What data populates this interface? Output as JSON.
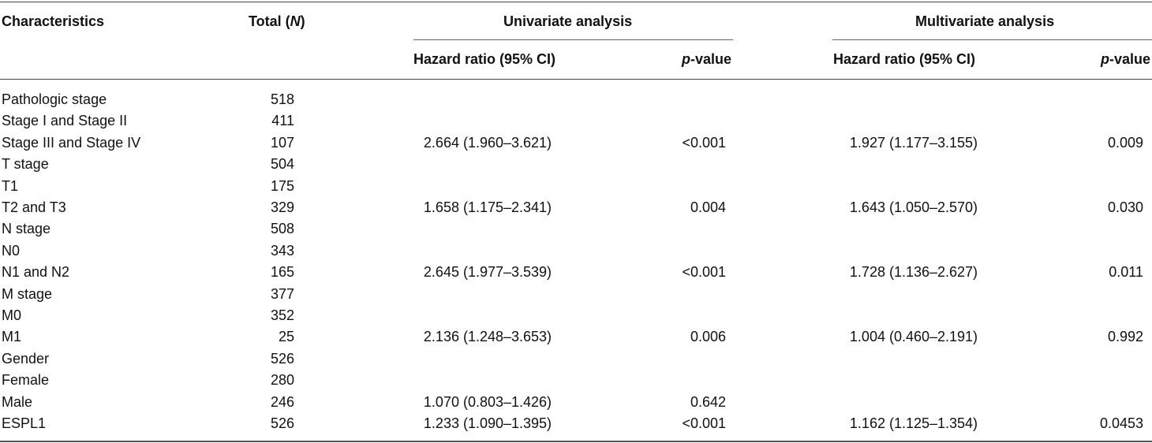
{
  "headers": {
    "characteristics": "Characteristics",
    "total_prefix": "Total (",
    "total_n": "N",
    "total_suffix": ")",
    "univariate": "Univariate analysis",
    "multivariate": "Multivariate analysis",
    "hazard_ratio": "Hazard ratio (95% CI)",
    "p_italic": "p",
    "p_rest": "-value"
  },
  "rows": [
    {
      "characteristic": "Pathologic stage",
      "total": "518",
      "uni_hr": "",
      "uni_p": "",
      "multi_hr": "",
      "multi_p": ""
    },
    {
      "characteristic": "Stage I and Stage II",
      "total": "411",
      "uni_hr": "",
      "uni_p": "",
      "multi_hr": "",
      "multi_p": ""
    },
    {
      "characteristic": "Stage III and Stage IV",
      "total": "107",
      "uni_hr": "2.664 (1.960–3.621)",
      "uni_p": "<0.001",
      "multi_hr": "1.927 (1.177–3.155)",
      "multi_p": "0.009"
    },
    {
      "characteristic": "T stage",
      "total": "504",
      "uni_hr": "",
      "uni_p": "",
      "multi_hr": "",
      "multi_p": ""
    },
    {
      "characteristic": "T1",
      "total": "175",
      "uni_hr": "",
      "uni_p": "",
      "multi_hr": "",
      "multi_p": ""
    },
    {
      "characteristic": "T2 and T3",
      "total": "329",
      "uni_hr": "1.658 (1.175–2.341)",
      "uni_p": "0.004",
      "multi_hr": "1.643 (1.050–2.570)",
      "multi_p": "0.030"
    },
    {
      "characteristic": "N stage",
      "total": "508",
      "uni_hr": "",
      "uni_p": "",
      "multi_hr": "",
      "multi_p": ""
    },
    {
      "characteristic": "N0",
      "total": "343",
      "uni_hr": "",
      "uni_p": "",
      "multi_hr": "",
      "multi_p": ""
    },
    {
      "characteristic": "N1 and N2",
      "total": "165",
      "uni_hr": "2.645 (1.977–3.539)",
      "uni_p": "<0.001",
      "multi_hr": "1.728 (1.136–2.627)",
      "multi_p": "0.011"
    },
    {
      "characteristic": "M stage",
      "total": "377",
      "uni_hr": "",
      "uni_p": "",
      "multi_hr": "",
      "multi_p": ""
    },
    {
      "characteristic": "M0",
      "total": "352",
      "uni_hr": "",
      "uni_p": "",
      "multi_hr": "",
      "multi_p": ""
    },
    {
      "characteristic": "M1",
      "total": "25",
      "uni_hr": "2.136 (1.248–3.653)",
      "uni_p": "0.006",
      "multi_hr": "1.004 (0.460–2.191)",
      "multi_p": "0.992"
    },
    {
      "characteristic": "Gender",
      "total": "526",
      "uni_hr": "",
      "uni_p": "",
      "multi_hr": "",
      "multi_p": ""
    },
    {
      "characteristic": "Female",
      "total": "280",
      "uni_hr": "",
      "uni_p": "",
      "multi_hr": "",
      "multi_p": ""
    },
    {
      "characteristic": "Male",
      "total": "246",
      "uni_hr": "1.070 (0.803–1.426)",
      "uni_p": "0.642",
      "multi_hr": "",
      "multi_p": ""
    },
    {
      "characteristic": "ESPL1",
      "total": "526",
      "uni_hr": "1.233 (1.090–1.395)",
      "uni_p": "<0.001",
      "multi_hr": "1.162 (1.125–1.354)",
      "multi_p": "0.0453"
    }
  ]
}
